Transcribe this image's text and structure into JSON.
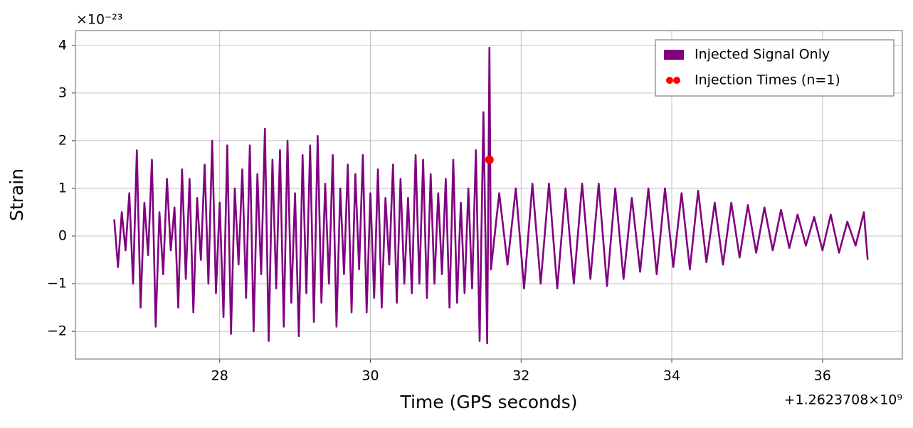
{
  "chart_data": {
    "type": "line",
    "ylabel": "Strain",
    "xlabel": "Time (GPS seconds)",
    "y_offset_text": "×10⁻²³",
    "x_offset_text": "+1.2623708×10⁹",
    "xlim": [
      26.085,
      37.06
    ],
    "ylim": [
      -2.58,
      4.31
    ],
    "xticks": [
      28,
      30,
      32,
      34,
      36
    ],
    "yticks": [
      {
        "value": -2,
        "label": "−2"
      },
      {
        "value": -1,
        "label": "−1"
      },
      0,
      1,
      2,
      3,
      4
    ],
    "grid": true,
    "legend": "upper right",
    "series": [
      {
        "name": "Injected Signal Only",
        "color": "#800080",
        "type": "line",
        "x": [
          26.6,
          26.65,
          26.7,
          26.75,
          26.8,
          26.85,
          26.9,
          26.95,
          27.0,
          27.05,
          27.1,
          27.15,
          27.2,
          27.25,
          27.3,
          27.35,
          27.4,
          27.45,
          27.5,
          27.55,
          27.6,
          27.65,
          27.7,
          27.75,
          27.8,
          27.85,
          27.9,
          27.95,
          28.0,
          28.05,
          28.1,
          28.15,
          28.2,
          28.25,
          28.3,
          28.35,
          28.4,
          28.45,
          28.5,
          28.55,
          28.6,
          28.65,
          28.7,
          28.75,
          28.8,
          28.85,
          28.9,
          28.95,
          29.0,
          29.05,
          29.1,
          29.15,
          29.2,
          29.25,
          29.3,
          29.35,
          29.4,
          29.45,
          29.5,
          29.55,
          29.6,
          29.65,
          29.7,
          29.75,
          29.8,
          29.85,
          29.9,
          29.95,
          30.0,
          30.05,
          30.1,
          30.15,
          30.2,
          30.25,
          30.3,
          30.35,
          30.4,
          30.45,
          30.5,
          30.55,
          30.6,
          30.65,
          30.7,
          30.75,
          30.8,
          30.85,
          30.9,
          30.95,
          31.0,
          31.05,
          31.1,
          31.15,
          31.2,
          31.25,
          31.3,
          31.35,
          31.4,
          31.45,
          31.5,
          31.55,
          31.58,
          31.6,
          31.71,
          31.82,
          31.93,
          32.04,
          32.15,
          32.26,
          32.37,
          32.48,
          32.59,
          32.7,
          32.81,
          32.92,
          33.03,
          33.14,
          33.25,
          33.36,
          33.47,
          33.58,
          33.69,
          33.8,
          33.91,
          34.02,
          34.13,
          34.24,
          34.35,
          34.46,
          34.57,
          34.68,
          34.79,
          34.9,
          35.01,
          35.12,
          35.23,
          35.34,
          35.45,
          35.56,
          35.67,
          35.78,
          35.89,
          36.0,
          36.11,
          36.22,
          36.33,
          36.44,
          36.55,
          36.6
        ],
        "values": [
          0.35,
          -0.65,
          0.5,
          -0.3,
          0.9,
          -1.0,
          1.8,
          -1.5,
          0.7,
          -0.4,
          1.6,
          -1.9,
          0.5,
          -0.8,
          1.2,
          -0.3,
          0.6,
          -1.5,
          1.4,
          -0.9,
          1.2,
          -1.6,
          0.8,
          -0.5,
          1.5,
          -1.0,
          2.0,
          -1.2,
          0.7,
          -1.7,
          1.9,
          -2.05,
          1.0,
          -0.6,
          1.4,
          -1.3,
          1.9,
          -2.0,
          1.3,
          -0.8,
          2.25,
          -2.2,
          1.6,
          -1.1,
          1.8,
          -1.9,
          2.0,
          -1.4,
          0.9,
          -2.1,
          1.7,
          -1.2,
          1.9,
          -1.8,
          2.1,
          -1.4,
          1.1,
          -1.0,
          1.7,
          -1.9,
          1.0,
          -0.8,
          1.5,
          -1.6,
          1.3,
          -0.7,
          1.7,
          -1.6,
          0.9,
          -1.3,
          1.4,
          -1.5,
          0.8,
          -0.6,
          1.5,
          -1.4,
          1.2,
          -1.0,
          0.8,
          -1.2,
          1.7,
          -1.0,
          1.6,
          -1.3,
          1.3,
          -1.0,
          0.9,
          -0.8,
          1.2,
          -1.5,
          1.6,
          -1.4,
          0.7,
          -1.2,
          1.0,
          -1.1,
          1.8,
          -2.2,
          2.6,
          -2.25,
          3.95,
          -0.7,
          0.9,
          -0.6,
          1.0,
          -1.1,
          1.1,
          -1.0,
          1.1,
          -1.1,
          1.0,
          -1.0,
          1.1,
          -0.9,
          1.1,
          -1.05,
          1.0,
          -0.9,
          0.8,
          -0.75,
          1.0,
          -0.8,
          1.0,
          -0.65,
          0.9,
          -0.7,
          0.95,
          -0.55,
          0.7,
          -0.6,
          0.7,
          -0.45,
          0.65,
          -0.35,
          0.6,
          -0.3,
          0.55,
          -0.25,
          0.45,
          -0.2,
          0.4,
          -0.3,
          0.45,
          -0.35,
          0.3,
          -0.2,
          0.5,
          -0.5
        ]
      },
      {
        "name": "Injection Times (n=1)",
        "color": "#ff0000",
        "type": "scatter",
        "x": [
          31.58
        ],
        "values": [
          1.6
        ]
      }
    ]
  }
}
